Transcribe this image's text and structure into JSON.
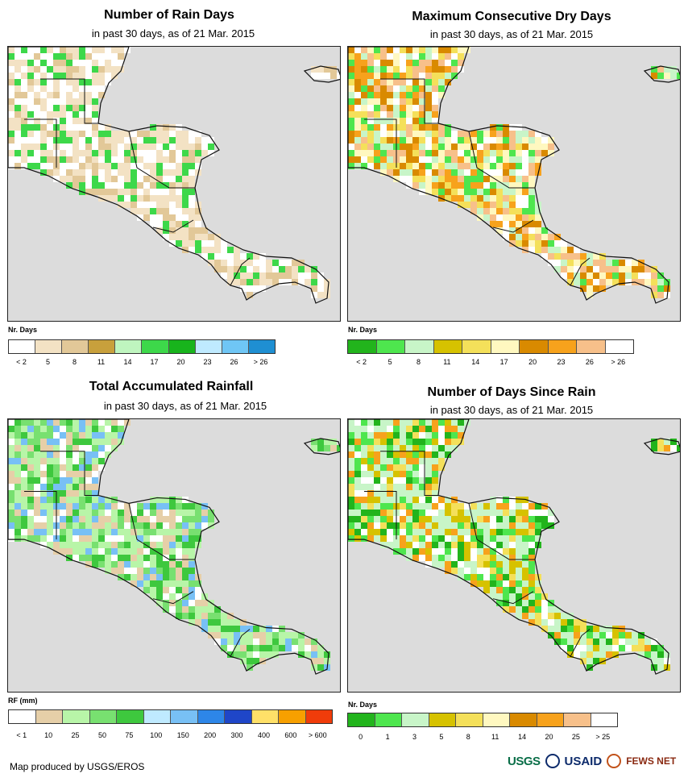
{
  "panels": [
    {
      "title": "Number of Rain Days",
      "subtitle": "in past 30 days, as of 21 Mar. 2015",
      "units": "Nr. Days",
      "legend": {
        "colors": [
          "#ffffff",
          "#f3e2c4",
          "#e2c898",
          "#c8a03c",
          "#bff5bf",
          "#3dd84a",
          "#18b41c",
          "#bfeaff",
          "#6fc6f5",
          "#1f8fd2"
        ],
        "labels": [
          "< 2",
          "5",
          "8",
          "11",
          "14",
          "17",
          "20",
          "23",
          "26",
          "> 26"
        ]
      },
      "map_palette": [
        "#ffffff",
        "#f3e2c4",
        "#e2c898",
        "#ffffff",
        "#f3e2c4",
        "#3dd84a"
      ]
    },
    {
      "title": "Maximum Consecutive Dry Days",
      "subtitle": "in past 30 days, as of 21 Mar. 2015",
      "units": "Nr. Days",
      "legend": {
        "colors": [
          "#22b41c",
          "#4ee64e",
          "#c8f5c8",
          "#d6c200",
          "#f4e05a",
          "#fff8c0",
          "#d98a00",
          "#f7a21c",
          "#f7c08a",
          "#ffffff"
        ],
        "labels": [
          "< 2",
          "5",
          "8",
          "11",
          "14",
          "17",
          "20",
          "23",
          "26",
          "> 26"
        ]
      },
      "map_palette": [
        "#f7c08a",
        "#f7a21c",
        "#f4e05a",
        "#fff8c0",
        "#d98a00",
        "#ffffff",
        "#c8f5c8",
        "#4ee64e"
      ]
    },
    {
      "title": "Total Accumulated Rainfall",
      "subtitle": "in past 30 days, as of 21 Mar. 2015",
      "units": "RF (mm)",
      "legend": {
        "colors": [
          "#ffffff",
          "#e6cfa8",
          "#b8f5a8",
          "#78e070",
          "#3ec83e",
          "#bfeaff",
          "#78c0f5",
          "#2d86e8",
          "#1f46c8",
          "#ffe068",
          "#f7a000",
          "#f03c0a"
        ],
        "labels": [
          "< 1",
          "10",
          "25",
          "50",
          "75",
          "100",
          "150",
          "200",
          "300",
          "400",
          "600",
          "> 600"
        ]
      },
      "map_palette": [
        "#b8f5a8",
        "#78e070",
        "#e6cfa8",
        "#ffffff",
        "#b8f5a8",
        "#3ec83e",
        "#78c0f5"
      ]
    },
    {
      "title": "Number of Days Since Rain",
      "subtitle": "in past 30 days, as of 21 Mar. 2015",
      "units": "Nr. Days",
      "legend": {
        "colors": [
          "#22b41c",
          "#4ee64e",
          "#c8f5c8",
          "#d6c200",
          "#f4e05a",
          "#fff8c0",
          "#d98a00",
          "#f7a21c",
          "#f7c08a",
          "#ffffff"
        ],
        "labels": [
          "0",
          "1",
          "3",
          "5",
          "8",
          "11",
          "14",
          "20",
          "25",
          "> 25"
        ]
      },
      "map_palette": [
        "#c8f5c8",
        "#c8f5c8",
        "#c8f5c8",
        "#4ee64e",
        "#22b41c",
        "#f4e05a",
        "#d6c200",
        "#ffffff",
        "#f7a21c"
      ]
    }
  ],
  "colors": {
    "sea": "#dcdcdc",
    "border": "#111111"
  },
  "footer": {
    "credit": "Map produced by USGS/EROS",
    "logo_usgs": "USGS",
    "logo_usaid": "USAID",
    "logo_fews": "FEWS NET"
  }
}
